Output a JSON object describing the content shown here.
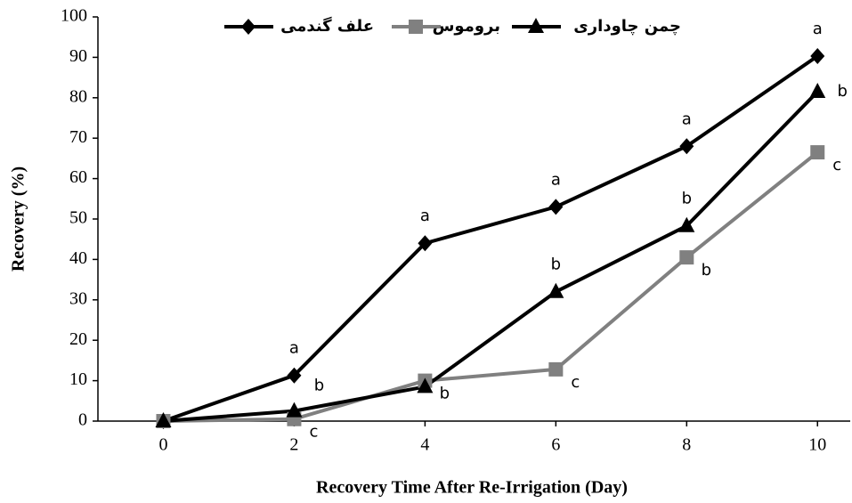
{
  "chart_data": {
    "type": "line",
    "xlabel": "Recovery Time After Re-Irrigation (Day)",
    "ylabel": "Recovery (%)",
    "x": [
      0,
      2,
      4,
      6,
      8,
      10
    ],
    "series": [
      {
        "name": "علف گندمی",
        "color": "#000000",
        "marker": "diamond",
        "values": [
          0,
          11.3,
          44,
          53,
          68,
          90.3
        ],
        "letters": [
          null,
          "a",
          "a",
          "a",
          "a",
          "a"
        ]
      },
      {
        "name": "بروموس",
        "color": "#808080",
        "marker": "square",
        "values": [
          0,
          0.5,
          10,
          12.8,
          40.5,
          66.5
        ],
        "letters": [
          null,
          "c",
          "b",
          "c",
          "b",
          "c"
        ]
      },
      {
        "name": "چمن چاوداری",
        "color": "#000000",
        "marker": "triangle",
        "values": [
          0,
          2.5,
          8.5,
          32,
          48.3,
          81.5
        ],
        "letters": [
          null,
          "b",
          null,
          "b",
          "b",
          "b"
        ]
      }
    ],
    "xlim": [
      -1,
      10.5
    ],
    "xticks": [
      0,
      2,
      4,
      6,
      8,
      10
    ],
    "ylim": [
      0,
      100
    ],
    "yticks": [
      0,
      10,
      20,
      30,
      40,
      50,
      60,
      70,
      80,
      90,
      100
    ],
    "grid": false,
    "legend": "top"
  }
}
